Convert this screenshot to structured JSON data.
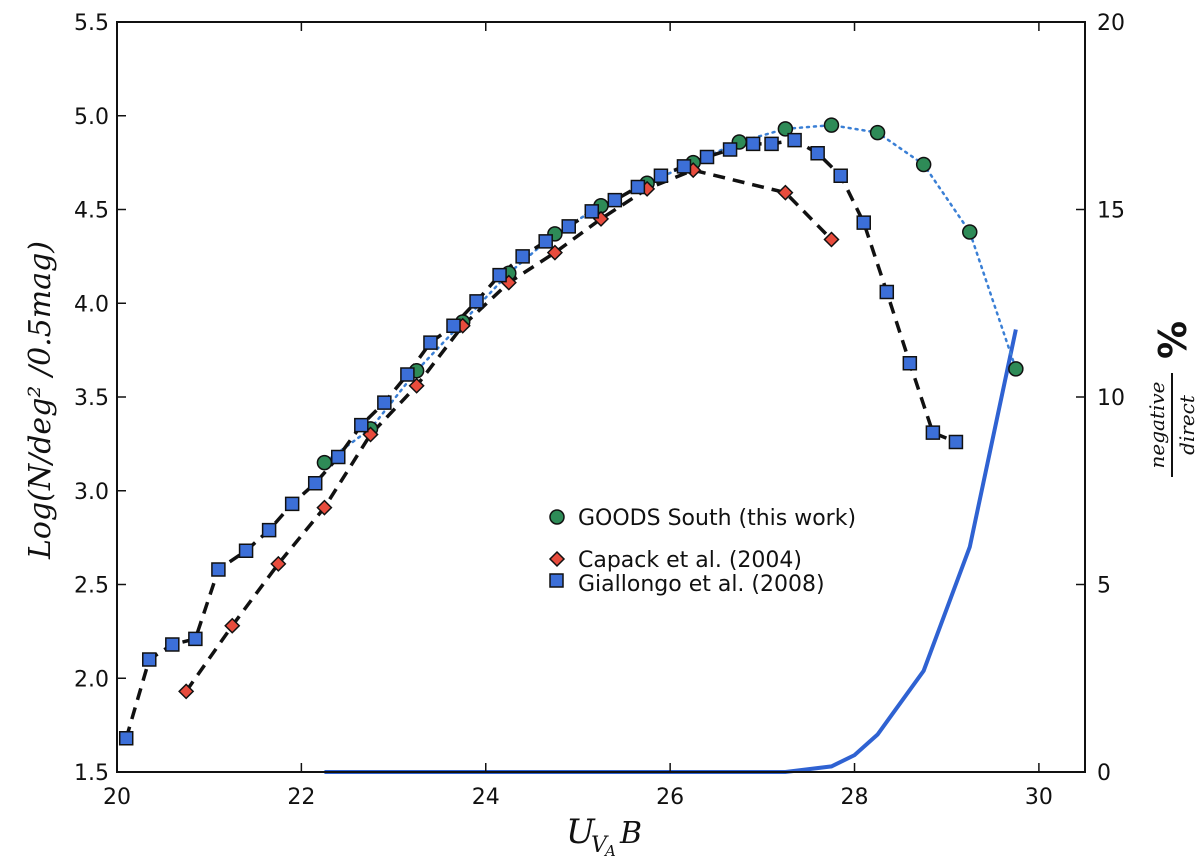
{
  "chart_data": {
    "type": "line",
    "xlabel_main": "U",
    "xlabel_sub": "V",
    "xlabel_subsub": "A",
    "xlabel_tail": "B",
    "ylabel": "Log(N/deg² /0.5mag)",
    "y2label_num": "negative",
    "y2label_den": "direct",
    "y2label_unit": "%",
    "xlim": [
      20,
      30.5
    ],
    "ylim": [
      1.5,
      5.5
    ],
    "y2lim": [
      0,
      20
    ],
    "xticks": [
      "20",
      "22",
      "24",
      "26",
      "28",
      "30"
    ],
    "yticks": [
      "1.5",
      "2.0",
      "2.5",
      "3.0",
      "3.5",
      "4.0",
      "4.5",
      "5.0",
      "5.5"
    ],
    "y2ticks": [
      "0",
      "5",
      "10",
      "15",
      "20"
    ],
    "legend_position": "center-right",
    "series": [
      {
        "name": "GOODS South (this work)",
        "color": "#2e8b57",
        "marker": "circle",
        "line": "dotted",
        "line_color": "#3a7fd5",
        "x": [
          22.25,
          22.75,
          23.25,
          23.75,
          24.25,
          24.75,
          25.25,
          25.75,
          26.25,
          26.75,
          27.25,
          27.75,
          28.25,
          28.75,
          29.25,
          29.75
        ],
        "y": [
          3.15,
          3.33,
          3.64,
          3.9,
          4.16,
          4.37,
          4.52,
          4.64,
          4.75,
          4.86,
          4.93,
          4.95,
          4.91,
          4.74,
          4.38,
          3.65
        ]
      },
      {
        "name": "Capack et al. (2004)",
        "color": "#e84c3d",
        "marker": "diamond",
        "line": "dashed",
        "line_color": "#111111",
        "x": [
          20.75,
          21.25,
          21.75,
          22.25,
          22.75,
          23.25,
          23.75,
          24.25,
          24.75,
          25.25,
          25.75,
          26.25,
          27.25,
          27.75
        ],
        "y": [
          1.93,
          2.28,
          2.61,
          2.91,
          3.3,
          3.56,
          3.88,
          4.11,
          4.27,
          4.45,
          4.61,
          4.71,
          4.59,
          4.34
        ]
      },
      {
        "name": "Giallongo et al. (2008)",
        "color": "#3c6fd8",
        "marker": "square",
        "line": "dashed",
        "line_color": "#111111",
        "x": [
          20.1,
          20.35,
          20.6,
          20.85,
          21.1,
          21.4,
          21.65,
          21.9,
          22.15,
          22.4,
          22.65,
          22.9,
          23.15,
          23.4,
          23.65,
          23.9,
          24.15,
          24.4,
          24.65,
          24.9,
          25.15,
          25.4,
          25.65,
          25.9,
          26.15,
          26.4,
          26.65,
          26.9,
          27.1,
          27.35,
          27.6,
          27.85,
          28.1,
          28.35,
          28.6,
          28.85,
          29.1
        ],
        "y": [
          1.68,
          2.1,
          2.18,
          2.21,
          2.58,
          2.68,
          2.79,
          2.93,
          3.04,
          3.18,
          3.35,
          3.47,
          3.62,
          3.79,
          3.88,
          4.01,
          4.15,
          4.25,
          4.33,
          4.41,
          4.49,
          4.55,
          4.62,
          4.68,
          4.73,
          4.78,
          4.82,
          4.85,
          4.85,
          4.87,
          4.8,
          4.68,
          4.43,
          4.06,
          3.68,
          3.31,
          3.26
        ]
      }
    ],
    "ratio_series": {
      "color": "#2f62d2",
      "x": [
        22.25,
        24.0,
        26.0,
        27.25,
        27.75,
        28.0,
        28.25,
        28.75,
        29.25,
        29.75
      ],
      "y": [
        0,
        0,
        0,
        0,
        0.15,
        0.45,
        1.0,
        2.7,
        6.0,
        11.8
      ]
    }
  }
}
